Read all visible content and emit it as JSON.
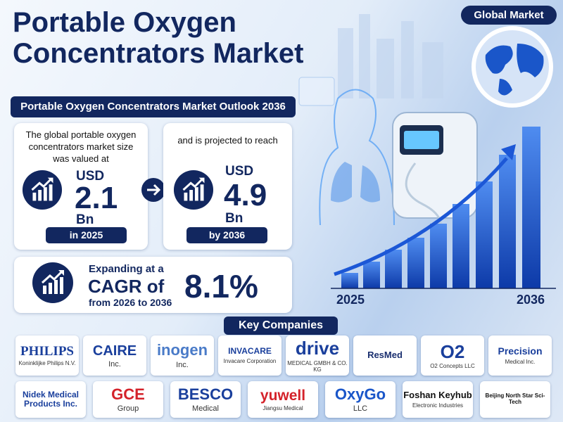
{
  "header": {
    "title": "Portable Oxygen Concentrators Market",
    "badge": "Global Market"
  },
  "outlook": {
    "title": "Portable Oxygen Concentrators Market Outlook 2036",
    "current": {
      "text": "The global portable oxygen concentrators market size was valued at",
      "currency": "USD",
      "value": 2.1,
      "unit": "Bn",
      "year": "in 2025"
    },
    "forecast": {
      "text": "and is projected to reach",
      "currency": "USD",
      "value": 4.9,
      "unit": "Bn",
      "year": "by 2036"
    },
    "cagr": {
      "line1": "Expanding at a",
      "line2": "CAGR of",
      "line3": "from 2026 to 2036",
      "value": "8.1%"
    }
  },
  "growth_graphic": {
    "start": "2025",
    "end": "2036"
  },
  "key_companies": {
    "title": "Key Companies",
    "logos": [
      {
        "name": "PHILIPS",
        "sub": "Koninklijke Philips N.V."
      },
      {
        "name": "CAIRE",
        "sub": "Inc."
      },
      {
        "name": "inogen",
        "sub": "Inc."
      },
      {
        "name": "INVACARE",
        "sub": "Invacare Corporation"
      },
      {
        "name": "drive",
        "sub": "MEDICAL GMBH & CO. KG"
      },
      {
        "name": "ResMed"
      },
      {
        "name": "O2",
        "sub": "O2 Concepts LLC"
      },
      {
        "name": "Precision",
        "sub": "Medical Inc."
      },
      {
        "name": "Nidek Medical Products Inc."
      },
      {
        "name": "GCE",
        "sub": "Group"
      },
      {
        "name": "BESCO",
        "sub": "Medical"
      },
      {
        "name": "yuwell",
        "sub": "Jiangsu Medical"
      },
      {
        "name": "OxyGo",
        "sub": "LLC"
      },
      {
        "name": "Foshan Keyhub",
        "sub": "Electronic Industries"
      },
      {
        "name": "Beijing North Star Sci-Tech"
      }
    ]
  }
}
